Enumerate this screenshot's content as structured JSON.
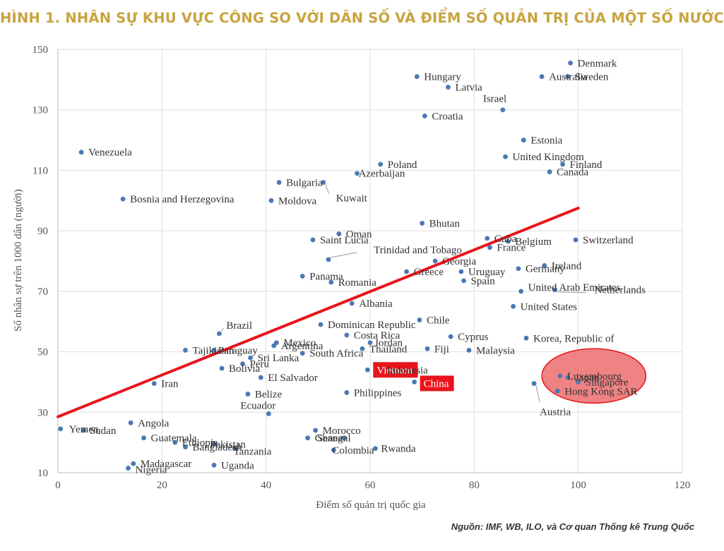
{
  "header": {
    "title": "HÌNH 1. NHÂN SỰ KHU VỰC CÔNG SO VỚI DÂN SỐ VÀ ĐIỂM SỐ QUẢN TRỊ CỦA MỘT SỐ NƯỚC",
    "title_color": "#c8a43e"
  },
  "footer": {
    "source": "Nguồn: IMF, WB, ILO, và Cơ quan Thống kê Trung Quốc"
  },
  "colors": {
    "point": "#4a78b5",
    "trend": "#e8141b",
    "ellipse_fill": "#ec6d6d",
    "ellipse_stroke": "#e8141b",
    "highlight_bg": "#e8141b",
    "highlight_text": "#ffffff"
  },
  "chart_data": {
    "type": "scatter",
    "title": "",
    "xlabel": "Điểm số quản trị quốc gia",
    "ylabel": "Số nhân sự trên 1000 dân (người)",
    "xlim": [
      0,
      120
    ],
    "ylim": [
      10,
      150
    ],
    "xticks": [
      0,
      20,
      40,
      60,
      80,
      100,
      120
    ],
    "yticks": [
      10,
      30,
      50,
      70,
      90,
      110,
      130,
      150
    ],
    "grid": true,
    "trendline": {
      "x": [
        0,
        100
      ],
      "y": [
        28.5,
        97.5
      ]
    },
    "highlight_ellipse": {
      "center": [
        103,
        42
      ],
      "rx": 10,
      "ry": 9
    },
    "points": [
      {
        "name": "Denmark",
        "x": 98.5,
        "y": 145.5
      },
      {
        "name": "Sweden",
        "x": 98,
        "y": 141
      },
      {
        "name": "Australia",
        "x": 93,
        "y": 141
      },
      {
        "name": "Hungary",
        "x": 69,
        "y": 141
      },
      {
        "name": "Latvia",
        "x": 75,
        "y": 137.5
      },
      {
        "name": "Israel",
        "x": 85.5,
        "y": 130
      },
      {
        "name": "Croatia",
        "x": 70.5,
        "y": 128
      },
      {
        "name": "Estonia",
        "x": 89.5,
        "y": 120
      },
      {
        "name": "Venezuela",
        "x": 4.5,
        "y": 116
      },
      {
        "name": "United Kingdom",
        "x": 86,
        "y": 114.5
      },
      {
        "name": "Finland",
        "x": 97,
        "y": 112
      },
      {
        "name": "Poland",
        "x": 62,
        "y": 112
      },
      {
        "name": "Canada",
        "x": 94.5,
        "y": 109.5
      },
      {
        "name": "Azerbaijan",
        "x": 57.5,
        "y": 109
      },
      {
        "name": "Bulgaria",
        "x": 42.5,
        "y": 106
      },
      {
        "name": "Kuwait",
        "x": 51,
        "y": 106
      },
      {
        "name": "Bosnia and Herzegovina",
        "x": 12.5,
        "y": 100.5
      },
      {
        "name": "Moldova",
        "x": 41,
        "y": 100
      },
      {
        "name": "Bhutan",
        "x": 70,
        "y": 92.5
      },
      {
        "name": "Oman",
        "x": 54,
        "y": 89
      },
      {
        "name": "Saint Lucia",
        "x": 49,
        "y": 87
      },
      {
        "name": "Cuba",
        "x": 82.5,
        "y": 87.5
      },
      {
        "name": "Switzerland",
        "x": 99.5,
        "y": 87
      },
      {
        "name": "Belgium",
        "x": 86.5,
        "y": 86.5
      },
      {
        "name": "France",
        "x": 83,
        "y": 84.5
      },
      {
        "name": "Trinidad and Tobago",
        "x": 52,
        "y": 80.5
      },
      {
        "name": "Georgia",
        "x": 72.5,
        "y": 80
      },
      {
        "name": "Ireland",
        "x": 93.5,
        "y": 78.5
      },
      {
        "name": "Germany",
        "x": 88.5,
        "y": 77.5
      },
      {
        "name": "Greece",
        "x": 67,
        "y": 76.5
      },
      {
        "name": "Uruguay",
        "x": 77.5,
        "y": 76.5
      },
      {
        "name": "Panama",
        "x": 47,
        "y": 75
      },
      {
        "name": "Spain",
        "x": 78,
        "y": 73.5
      },
      {
        "name": "Romania",
        "x": 52.5,
        "y": 73
      },
      {
        "name": "Netherlands",
        "x": 95.5,
        "y": 70.5
      },
      {
        "name": "United Arab Emirates",
        "x": 89,
        "y": 70
      },
      {
        "name": "Albania",
        "x": 56.5,
        "y": 66
      },
      {
        "name": "United States",
        "x": 87.5,
        "y": 65
      },
      {
        "name": "Chile",
        "x": 69.5,
        "y": 60.5
      },
      {
        "name": "Dominican Republic",
        "x": 50.5,
        "y": 59
      },
      {
        "name": "Brazil",
        "x": 31,
        "y": 56
      },
      {
        "name": "Costa Rica",
        "x": 55.5,
        "y": 55.5
      },
      {
        "name": "Cyprus",
        "x": 75.5,
        "y": 55
      },
      {
        "name": "Korea, Republic of",
        "x": 90,
        "y": 54.5
      },
      {
        "name": "Mexico",
        "x": 42,
        "y": 53
      },
      {
        "name": "Jordan",
        "x": 60,
        "y": 53
      },
      {
        "name": "Argentina",
        "x": 41.5,
        "y": 52
      },
      {
        "name": "Thailand",
        "x": 58.5,
        "y": 51
      },
      {
        "name": "Fiji",
        "x": 71,
        "y": 51
      },
      {
        "name": "Malaysia",
        "x": 79,
        "y": 50.5
      },
      {
        "name": "Tajikistan",
        "x": 24.5,
        "y": 50.5
      },
      {
        "name": "Paraguay",
        "x": 30,
        "y": 50.5
      },
      {
        "name": "South Africa",
        "x": 47,
        "y": 49.5
      },
      {
        "name": "Sri Lanka",
        "x": 37,
        "y": 48
      },
      {
        "name": "Peru",
        "x": 35.5,
        "y": 46
      },
      {
        "name": "Bolivia",
        "x": 31.5,
        "y": 44.5
      },
      {
        "name": "Vietnam",
        "x": 59.5,
        "y": 44
      },
      {
        "name": "Indonesia",
        "x": 64,
        "y": 44
      },
      {
        "name": "El Salvador",
        "x": 39,
        "y": 41.5
      },
      {
        "name": "Luxembourg",
        "x": 96.5,
        "y": 42
      },
      {
        "name": "Japan",
        "x": 98,
        "y": 41.5
      },
      {
        "name": "China",
        "x": 68.5,
        "y": 40
      },
      {
        "name": "Singapore",
        "x": 100,
        "y": 40
      },
      {
        "name": "Iran",
        "x": 18.5,
        "y": 39.5
      },
      {
        "name": "Austria",
        "x": 91.5,
        "y": 39.5
      },
      {
        "name": "Hong Kong SAR",
        "x": 96,
        "y": 37
      },
      {
        "name": "Philippines",
        "x": 55.5,
        "y": 36.5
      },
      {
        "name": "Belize",
        "x": 36.5,
        "y": 36
      },
      {
        "name": "Ecuador",
        "x": 40.5,
        "y": 29.5
      },
      {
        "name": "Angola",
        "x": 14,
        "y": 26.5
      },
      {
        "name": "Yemen",
        "x": 0.5,
        "y": 24.5
      },
      {
        "name": "Sudan",
        "x": 5,
        "y": 24
      },
      {
        "name": "Morocco",
        "x": 49.5,
        "y": 24
      },
      {
        "name": "Ghana",
        "x": 48,
        "y": 21.5
      },
      {
        "name": "Senegal",
        "x": 55,
        "y": 21.5
      },
      {
        "name": "Guatemala",
        "x": 16.5,
        "y": 21.5
      },
      {
        "name": "Ethiopia",
        "x": 22.5,
        "y": 20
      },
      {
        "name": "Pakistan",
        "x": 30,
        "y": 19.5
      },
      {
        "name": "Bangladesh",
        "x": 24.5,
        "y": 18.5
      },
      {
        "name": "Tanzania",
        "x": 34,
        "y": 18
      },
      {
        "name": "Colombia",
        "x": 53,
        "y": 17.5
      },
      {
        "name": "Rwanda",
        "x": 61,
        "y": 18
      },
      {
        "name": "Madagascar",
        "x": 14.5,
        "y": 13
      },
      {
        "name": "Uganda",
        "x": 30,
        "y": 12.5
      },
      {
        "name": "Nigeria",
        "x": 13.5,
        "y": 11.5
      }
    ]
  }
}
